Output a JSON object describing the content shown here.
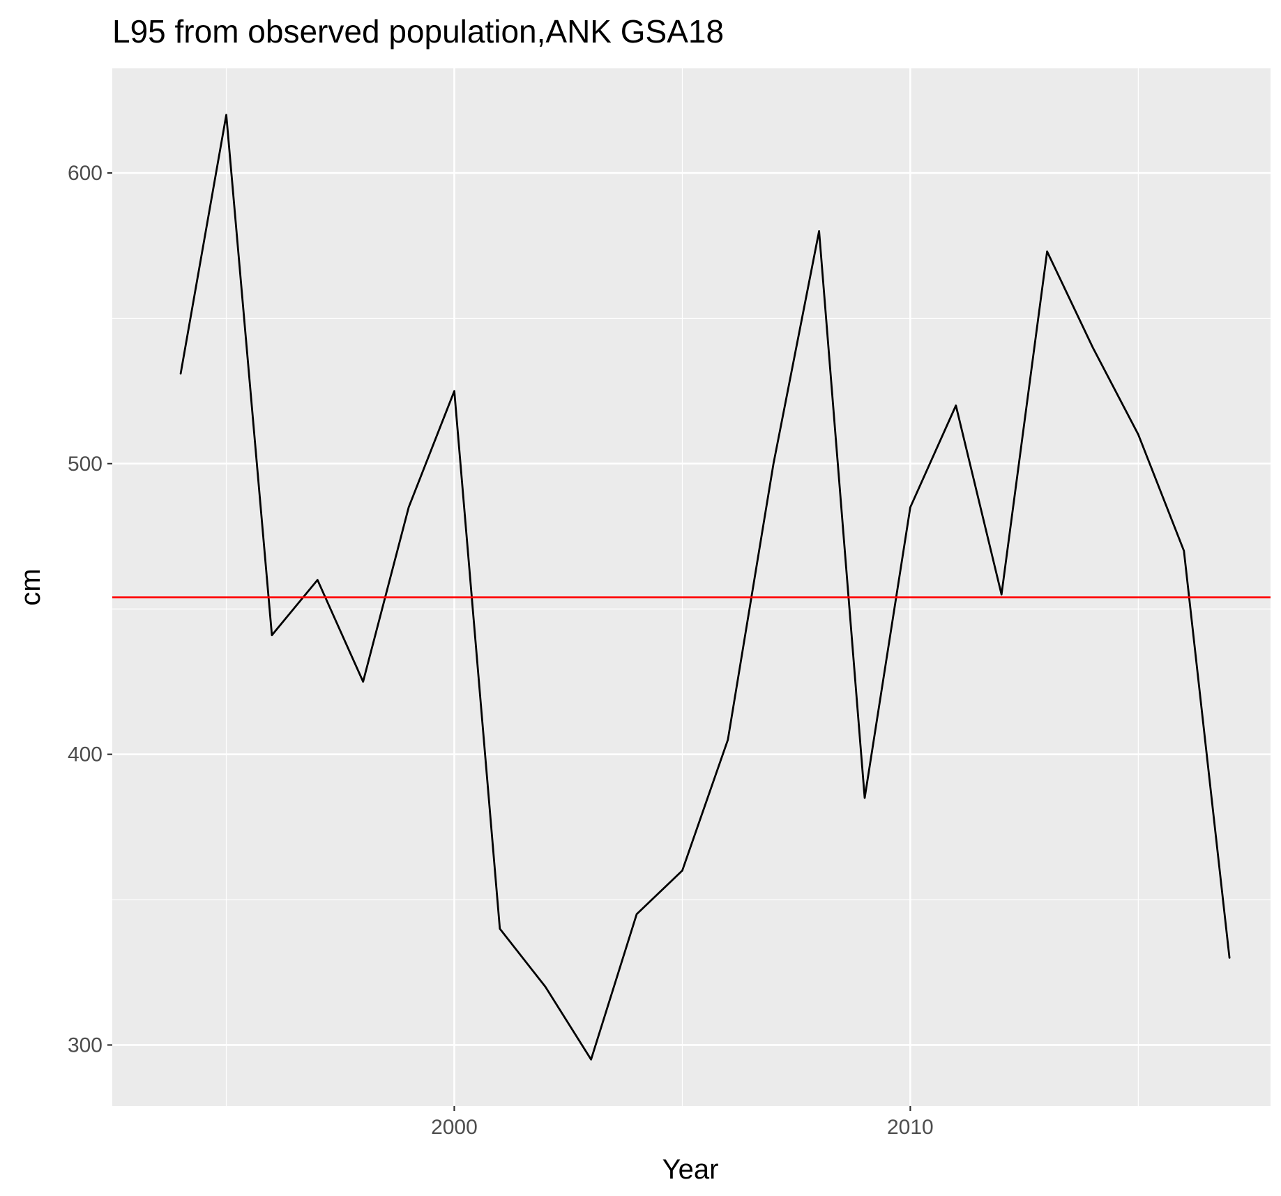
{
  "chart_data": {
    "type": "line",
    "title": "L95 from observed population,ANK GSA18",
    "xlabel": "Year",
    "ylabel": "cm",
    "xlim": [
      1992.5,
      2017.9
    ],
    "ylim": [
      279,
      636
    ],
    "x_ticks": [
      2000,
      2010
    ],
    "x_tick_labels": [
      "2000",
      "2010"
    ],
    "x_minor_ticks": [
      1995,
      2005,
      2015
    ],
    "y_ticks": [
      300,
      400,
      500,
      600
    ],
    "y_tick_labels": [
      "300",
      "400",
      "500",
      "600"
    ],
    "y_minor_ticks": [
      350,
      450,
      550
    ],
    "grid": true,
    "background": "#ebebeb",
    "gridline_color": "#ffffff",
    "series": [
      {
        "color": "#000000",
        "x": [
          1994,
          1995,
          1996,
          1997,
          1998,
          1999,
          2000,
          2001,
          2002,
          2003,
          2004,
          2005,
          2006,
          2007,
          2008,
          2009,
          2010,
          2011,
          2012,
          2013,
          2014,
          2015,
          2016,
          2017
        ],
        "y": [
          531,
          620,
          441,
          460,
          425,
          485,
          525,
          340,
          320,
          295,
          345,
          360,
          405,
          500,
          580,
          385,
          485,
          520,
          455,
          573,
          540,
          510,
          470,
          330
        ]
      }
    ],
    "reference_line": {
      "orientation": "horizontal",
      "y": 454,
      "color": "#ff0000"
    }
  }
}
